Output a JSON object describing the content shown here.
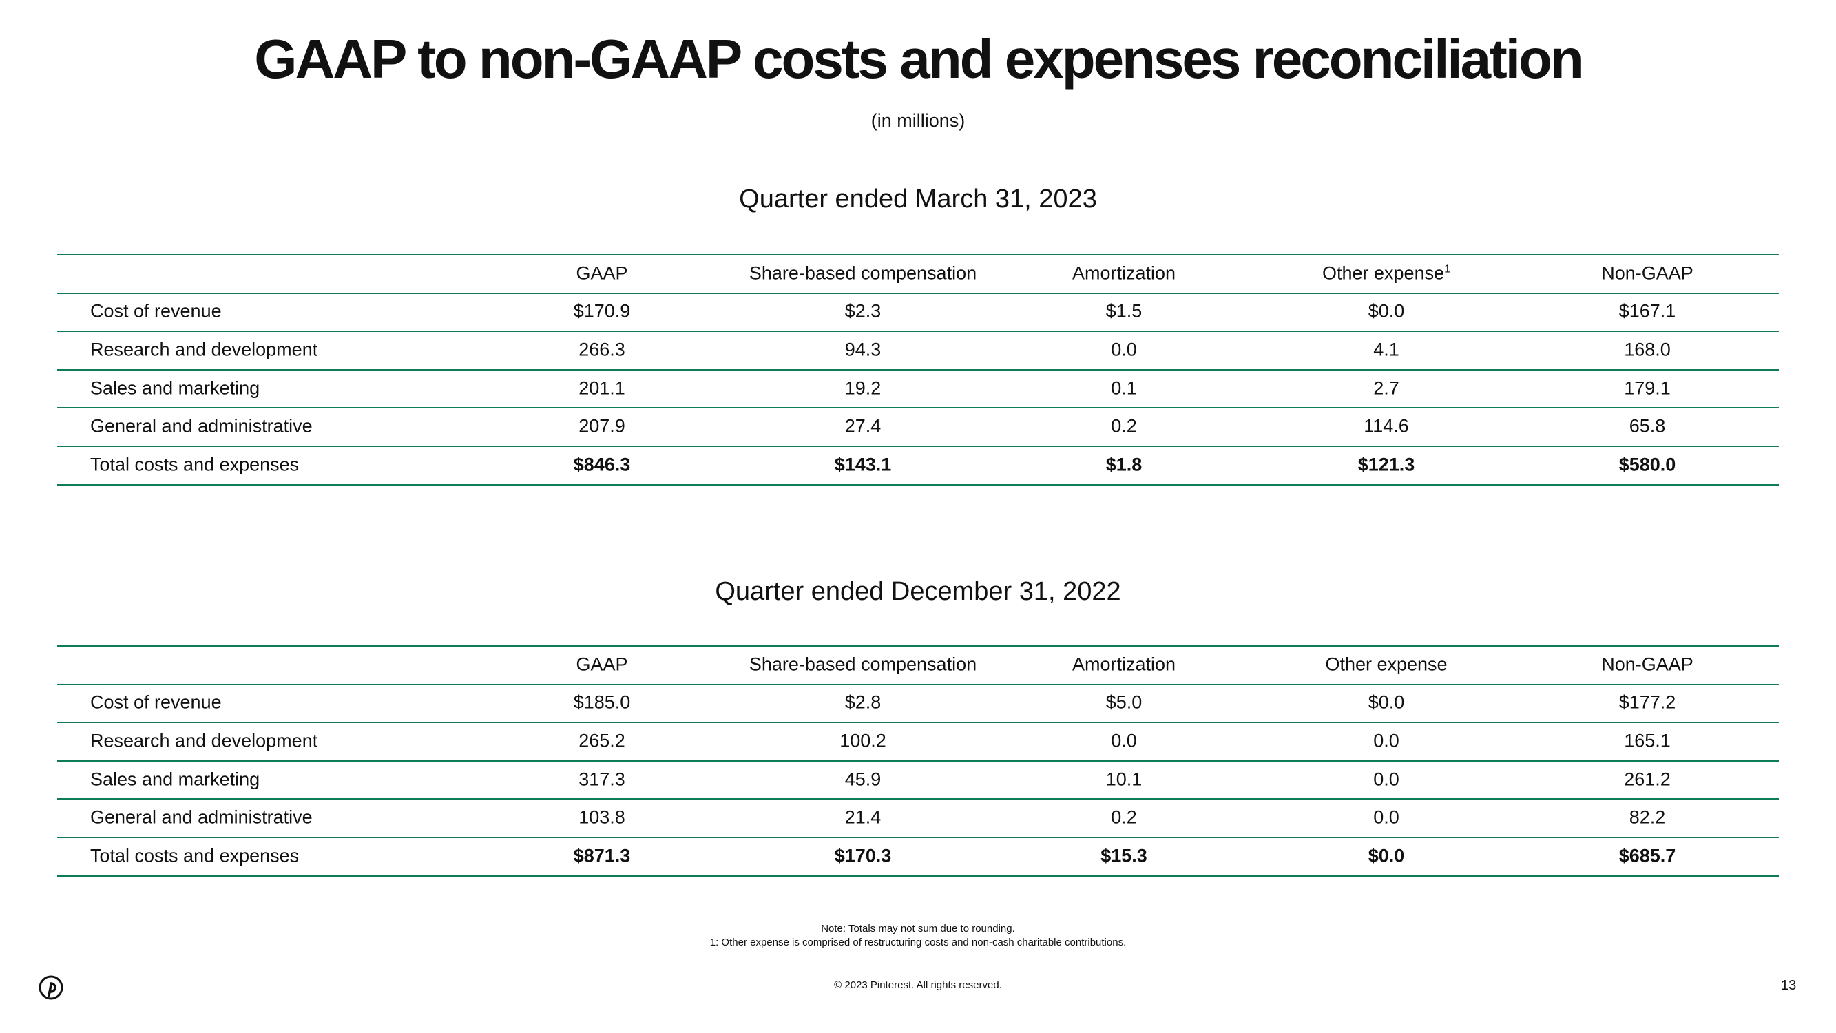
{
  "header": {
    "title": "GAAP to non-GAAP costs and expenses reconciliation",
    "subtitle": "(in millions)"
  },
  "tables": [
    {
      "heading": "Quarter ended March 31, 2023",
      "columns": [
        "GAAP",
        "Share-based compensation",
        "Amortization",
        {
          "text": "Other expense",
          "sup": "1"
        },
        "Non-GAAP"
      ],
      "rows": [
        [
          "Cost of revenue",
          "$170.9",
          "$2.3",
          "$1.5",
          "$0.0",
          "$167.1"
        ],
        [
          "Research and development",
          "266.3",
          "94.3",
          "0.0",
          "4.1",
          "168.0"
        ],
        [
          "Sales and marketing",
          "201.1",
          "19.2",
          "0.1",
          "2.7",
          "179.1"
        ],
        [
          "General and administrative",
          "207.9",
          "27.4",
          "0.2",
          "114.6",
          "65.8"
        ],
        [
          "Total costs and expenses",
          "$846.3",
          "$143.1",
          "$1.8",
          "$121.3",
          "$580.0"
        ]
      ]
    },
    {
      "heading": "Quarter ended December 31, 2022",
      "columns": [
        "GAAP",
        "Share-based compensation",
        "Amortization",
        "Other expense",
        "Non-GAAP"
      ],
      "rows": [
        [
          "Cost of revenue",
          "$185.0",
          "$2.8",
          "$5.0",
          "$0.0",
          "$177.2"
        ],
        [
          "Research and development",
          "265.2",
          "100.2",
          "0.0",
          "0.0",
          "165.1"
        ],
        [
          "Sales and marketing",
          "317.3",
          "45.9",
          "10.1",
          "0.0",
          "261.2"
        ],
        [
          "General and administrative",
          "103.8",
          "21.4",
          "0.2",
          "0.0",
          "82.2"
        ],
        [
          "Total costs and expenses",
          "$871.3",
          "$170.3",
          "$15.3",
          "$0.0",
          "$685.7"
        ]
      ]
    }
  ],
  "footer": {
    "notes": [
      "Note: Totals may not sum due to rounding.",
      "1: Other expense is comprised of restructuring costs and non-cash charitable contributions."
    ],
    "copyright": "© 2023 Pinterest. All rights reserved.",
    "page": "13"
  }
}
